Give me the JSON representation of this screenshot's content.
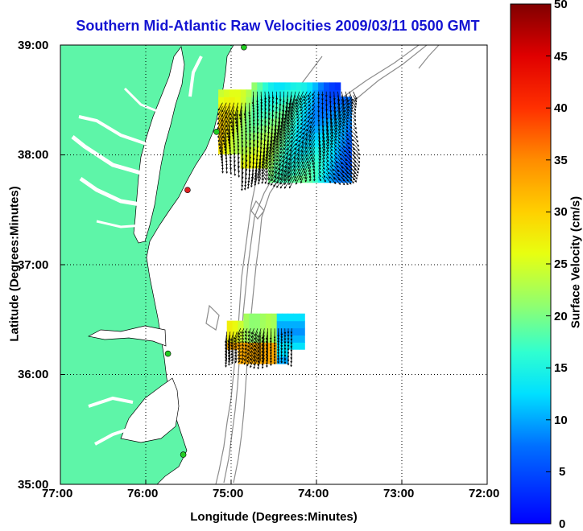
{
  "title": "Southern Mid-Atlantic Raw Velocities 2009/03/11 0500 GMT",
  "x_axis": {
    "label": "Longitude (Degrees:Minutes)",
    "ticks": [
      "77:00",
      "76:00",
      "75:00",
      "74:00",
      "73:00",
      "72:00"
    ],
    "range_deg_west": [
      77,
      72
    ]
  },
  "y_axis": {
    "label": "Latitude (Degrees:Minutes)",
    "ticks": [
      "39:00",
      "38:00",
      "37:00",
      "36:00",
      "35:00"
    ],
    "range_deg_north": [
      35,
      39
    ]
  },
  "colorbar": {
    "label": "Surface Velocity (cm/s)",
    "ticks": [
      "50",
      "45",
      "40",
      "35",
      "30",
      "25",
      "20",
      "15",
      "10",
      "5",
      "0"
    ],
    "range": [
      0,
      50
    ]
  },
  "colors": {
    "title": "#1414d2",
    "land": "#5ef5a8",
    "coastline": "#000000",
    "bathymetry": "#8c8c8c",
    "station_active": "#22cc22",
    "station_inactive": "#dd2222",
    "vector": "#000000"
  },
  "stations": [
    {
      "lon": 74.85,
      "lat": 38.98,
      "status": "active"
    },
    {
      "lon": 75.17,
      "lat": 38.21,
      "status": "active"
    },
    {
      "lon": 75.51,
      "lat": 37.68,
      "status": "inactive"
    },
    {
      "lon": 75.74,
      "lat": 36.19,
      "status": "active"
    },
    {
      "lon": 75.56,
      "lat": 35.27,
      "status": "active"
    }
  ]
}
